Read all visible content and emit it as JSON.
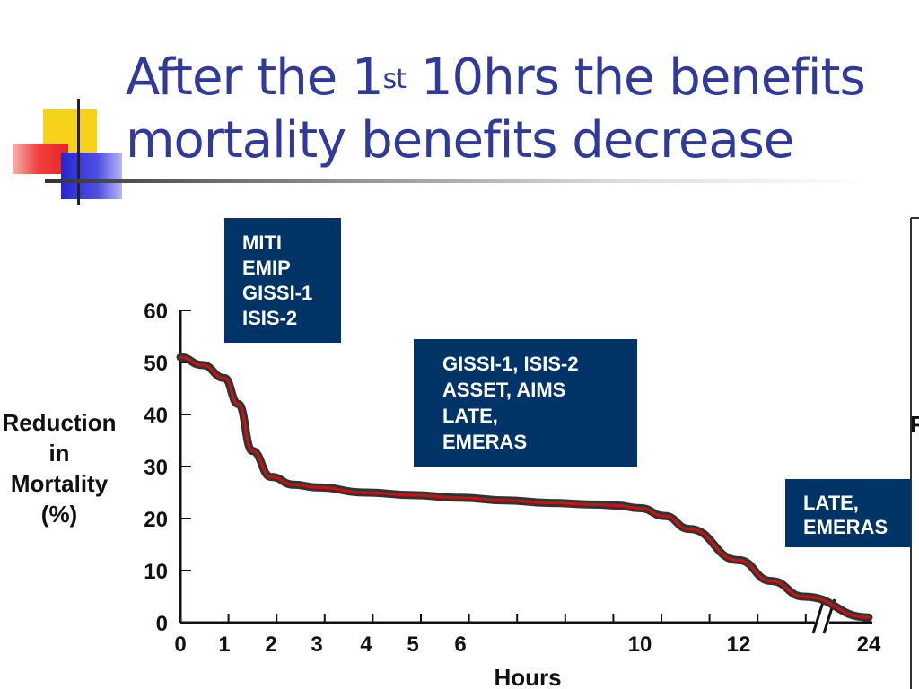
{
  "title": {
    "line1_pre": "After the 1",
    "line1_sup": "st",
    "line1_post": " 10hrs the benefits",
    "line2": "mortality benefits decrease"
  },
  "colors": {
    "title": "#2f3a9a",
    "box": "#003366",
    "curve": "#cc1111",
    "curve_outline": "#333333"
  },
  "chart_data": {
    "type": "line",
    "xlabel": "Hours",
    "ylabel": [
      "Reduction",
      "in",
      "Mortality",
      "(%)"
    ],
    "ylim": [
      0,
      60
    ],
    "y_ticks": [
      "0",
      "10",
      "20",
      "30",
      "40",
      "50",
      "60"
    ],
    "x_ticks": [
      "0",
      "1",
      "2",
      "3",
      "4",
      "5",
      "6",
      "10",
      "12",
      "24"
    ],
    "axis_break": "between 12 and 24",
    "grid": false,
    "series": [
      {
        "x": [
          0,
          0.5,
          1,
          1.3,
          1.6,
          2,
          2.5,
          3,
          4,
          5,
          6,
          7,
          8,
          9,
          9.5,
          10,
          10.5,
          11,
          12,
          12.5,
          13,
          14
        ],
        "y": [
          51,
          49.5,
          47,
          42,
          33,
          28,
          26.5,
          26,
          25,
          24.5,
          24,
          23.5,
          23,
          22.7,
          22.5,
          22,
          20.5,
          18,
          12,
          8,
          5,
          1
        ]
      }
    ],
    "annotations": [
      {
        "lines": [
          "MITI",
          "EMIP",
          "GISSI-1",
          "ISIS-2"
        ]
      },
      {
        "lines": [
          "GISSI-1, ISIS-2",
          "ASSET, AIMS",
          "LATE,",
          "EMERAS"
        ]
      },
      {
        "lines": [
          "LATE,",
          "EMERAS"
        ]
      }
    ],
    "side_fragment": "F"
  }
}
